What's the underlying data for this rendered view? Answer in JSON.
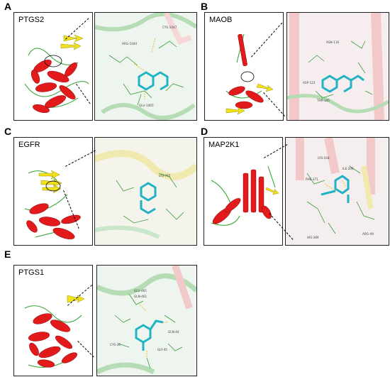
{
  "panels": [
    {
      "letter": "A",
      "protein": "PTGS2",
      "residues": [
        "CYS-1047",
        "ARG-1044",
        "GLU-1465"
      ]
    },
    {
      "letter": "B",
      "protein": "MAOB",
      "residues": [
        "ASN-116",
        "ASP-123",
        "THR-195"
      ]
    },
    {
      "letter": "C",
      "protein": "EGFR",
      "residues": [
        "LYS-745"
      ]
    },
    {
      "letter": "D",
      "protein": "MAP2K1",
      "residues": [
        "LYS-168",
        "ILE-204",
        "PHE-371",
        "HIS-389",
        "ARG-49"
      ]
    },
    {
      "letter": "E",
      "protein": "PTGS1",
      "residues": [
        "GLU-465",
        "GLN-461",
        "CYS-36",
        "GLN-44",
        "GLY-45"
      ]
    }
  ],
  "colors": {
    "helix": "#e31a1c",
    "sheet": "#f2e21a",
    "coil": "#2ca02c",
    "ligand": "#21b3c4",
    "hbond": "#f0c020"
  }
}
